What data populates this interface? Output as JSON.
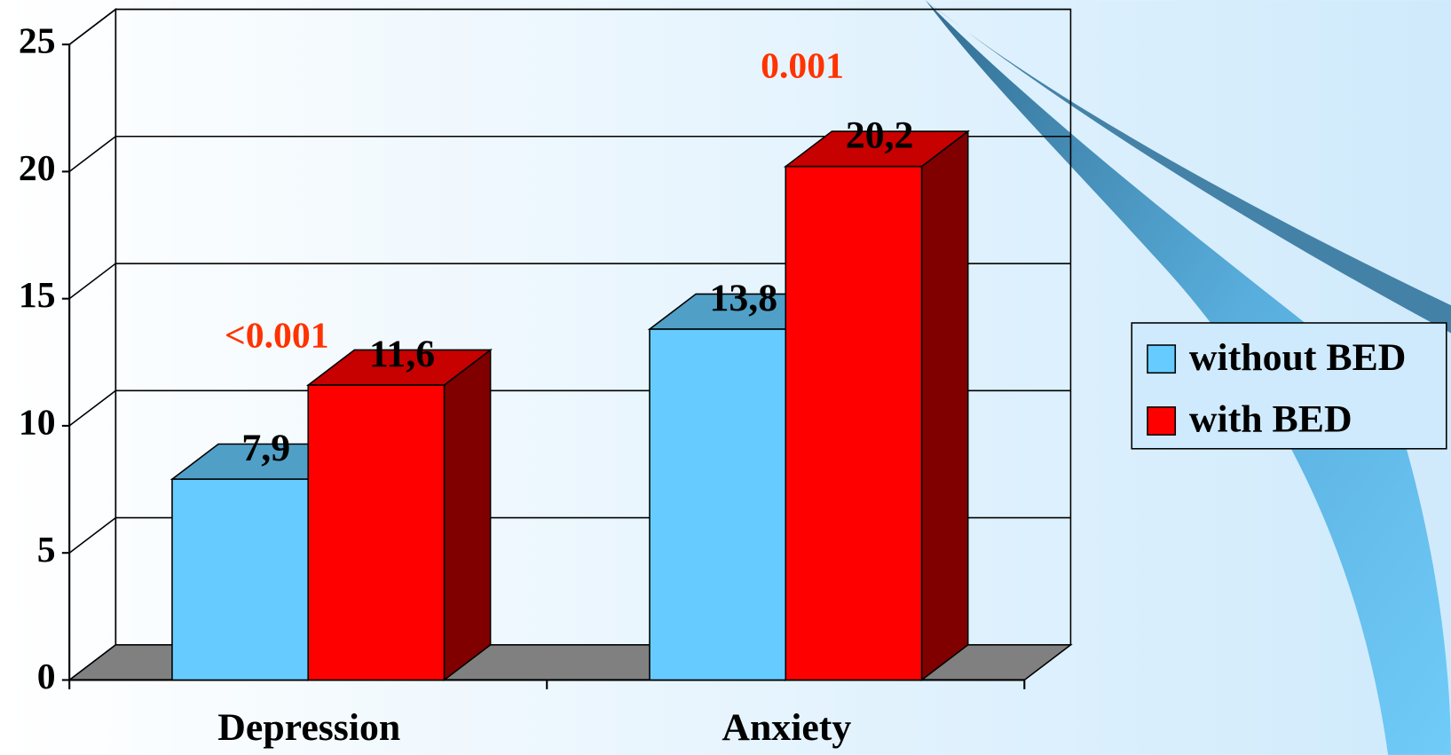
{
  "chart_data": {
    "type": "bar3d",
    "categories": [
      "Depression",
      "Anxiety"
    ],
    "series": [
      {
        "name": "without BED",
        "color": "#66ccff",
        "values": [
          7.9,
          13.8
        ],
        "value_labels": [
          "7,9",
          "13,8"
        ]
      },
      {
        "name": "with BED",
        "color": "#ff0000",
        "values": [
          11.6,
          20.2
        ],
        "value_labels": [
          "11,6",
          "20,2"
        ]
      }
    ],
    "annotations": [
      "<0.001",
      "0.001"
    ],
    "annotation_color": "#ff3300",
    "ylim": [
      0,
      25
    ],
    "yticks": [
      0,
      5,
      10,
      15,
      20,
      25
    ],
    "grid": true,
    "legend": "right"
  }
}
